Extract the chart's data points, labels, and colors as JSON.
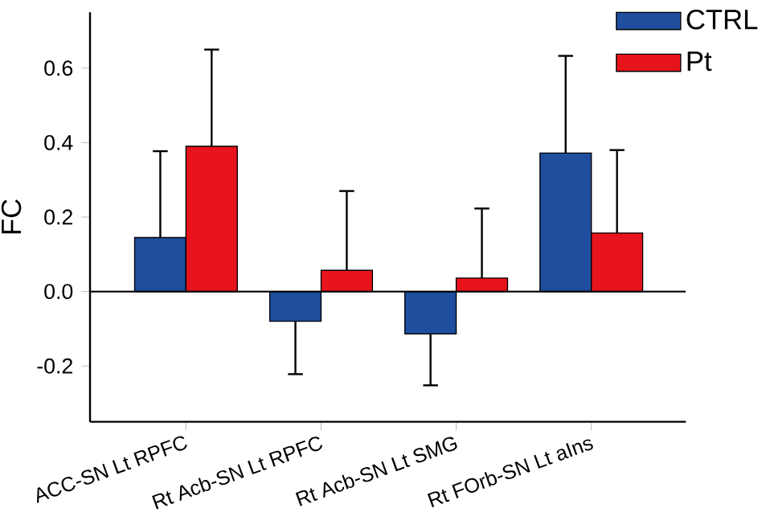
{
  "chart_data": {
    "type": "bar",
    "ylabel": "FC",
    "categories": [
      "ACC-SN Lt RPFC",
      "Rt Acb-SN Lt RPFC",
      "Rt Acb-SN Lt SMG",
      "Rt FOrb-SN Lt aIns"
    ],
    "series": [
      {
        "name": "CTRL",
        "color": "#1f4e9e",
        "values": [
          0.145,
          -0.08,
          -0.114,
          0.372
        ],
        "errors": [
          [
            0.145,
            0.377
          ],
          [
            -0.222,
            -0.08
          ],
          [
            -0.252,
            -0.114
          ],
          [
            0.372,
            0.633
          ]
        ]
      },
      {
        "name": "Pt",
        "color": "#e8141c",
        "values": [
          0.39,
          0.057,
          0.036,
          0.157
        ],
        "errors": [
          [
            0.39,
            0.65
          ],
          [
            0.057,
            0.27
          ],
          [
            0.036,
            0.223
          ],
          [
            0.157,
            0.38
          ]
        ]
      }
    ],
    "ylim": [
      -0.35,
      0.75
    ],
    "yticks": [
      {
        "value": -0.2,
        "label": "-0.2"
      },
      {
        "value": 0.0,
        "label": "0.0"
      },
      {
        "value": 0.2,
        "label": "0.2"
      },
      {
        "value": 0.4,
        "label": "0.4"
      },
      {
        "value": 0.6,
        "label": "0.6"
      }
    ],
    "ref_lines": [
      {
        "axis": "y",
        "value": 0
      }
    ],
    "legend": "top right",
    "grid": false
  }
}
